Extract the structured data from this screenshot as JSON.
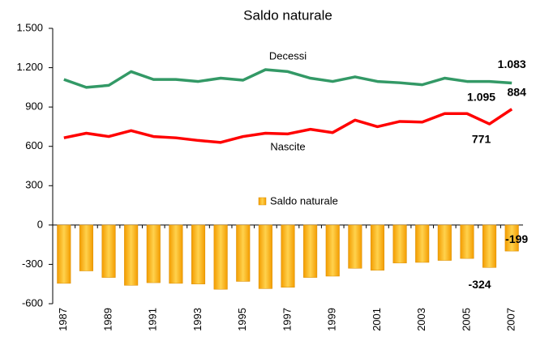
{
  "chart_data": {
    "type": "bar_line",
    "title": "Saldo naturale",
    "categories": [
      "1987",
      null,
      "1989",
      null,
      "1991",
      null,
      "1993",
      null,
      "1995",
      null,
      "1997",
      null,
      "1999",
      null,
      "2001",
      null,
      "2003",
      null,
      "2005",
      null,
      "2007"
    ],
    "series": [
      {
        "name": "Decessi",
        "type": "line",
        "color": "#339966",
        "values": [
          1110,
          1050,
          1065,
          1170,
          1110,
          1110,
          1095,
          1120,
          1105,
          1185,
          1170,
          1120,
          1095,
          1130,
          1095,
          1085,
          1070,
          1120,
          1095,
          1095,
          1083
        ],
        "value_labels": [
          null,
          null,
          null,
          null,
          null,
          null,
          null,
          null,
          null,
          null,
          null,
          null,
          null,
          null,
          null,
          null,
          null,
          null,
          null,
          "1.095",
          "1.083"
        ]
      },
      {
        "name": "Nascite",
        "type": "line",
        "color": "#ff0000",
        "values": [
          665,
          700,
          675,
          720,
          675,
          665,
          645,
          630,
          675,
          700,
          695,
          730,
          705,
          800,
          750,
          790,
          785,
          850,
          850,
          771,
          884
        ],
        "value_labels": [
          null,
          null,
          null,
          null,
          null,
          null,
          null,
          null,
          null,
          null,
          null,
          null,
          null,
          null,
          null,
          null,
          null,
          null,
          null,
          "771",
          "884"
        ]
      },
      {
        "name": "Saldo naturale",
        "type": "bar",
        "color": "#f7a800",
        "values": [
          -445,
          -350,
          -400,
          -460,
          -440,
          -445,
          -450,
          -490,
          -430,
          -485,
          -475,
          -400,
          -390,
          -330,
          -345,
          -290,
          -285,
          -270,
          -255,
          -324,
          -199
        ],
        "value_labels": [
          null,
          null,
          null,
          null,
          null,
          null,
          null,
          null,
          null,
          null,
          null,
          null,
          null,
          null,
          null,
          null,
          null,
          null,
          null,
          "-324",
          "-199"
        ]
      }
    ],
    "ylim": [
      -600,
      1500
    ],
    "yticks": [
      {
        "value": 1500,
        "label": "1.500"
      },
      {
        "value": 1200,
        "label": "1.200"
      },
      900,
      600,
      300,
      0,
      -300,
      -600
    ],
    "grid": false
  }
}
